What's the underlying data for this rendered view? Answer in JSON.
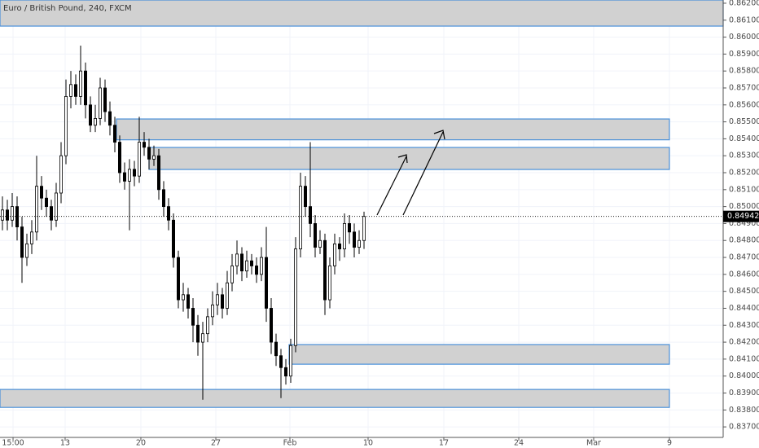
{
  "chart_data": {
    "type": "candlestick",
    "title": "Euro / British Pound, 240, FXCM",
    "x": [
      0,
      1,
      2,
      3,
      4,
      5,
      6,
      7,
      8,
      9,
      10,
      11,
      12,
      13,
      14,
      15,
      16,
      17,
      18,
      19,
      20,
      21,
      22,
      23,
      24,
      25,
      26,
      27,
      28,
      29,
      30,
      31,
      32,
      33,
      34,
      35,
      36,
      37,
      38,
      39,
      40,
      41,
      42,
      43,
      44,
      45,
      46,
      47,
      48,
      49,
      50,
      51,
      52,
      53,
      54,
      55,
      56,
      57,
      58,
      59,
      60,
      61,
      62,
      63,
      64,
      65,
      66,
      67,
      68,
      69,
      70,
      71,
      72,
      73,
      74
    ],
    "open": [
      0.8492,
      0.8498,
      0.8492,
      0.85,
      0.8488,
      0.847,
      0.8478,
      0.8485,
      0.8512,
      0.8505,
      0.85,
      0.8492,
      0.8508,
      0.853,
      0.8565,
      0.8572,
      0.8565,
      0.858,
      0.856,
      0.8548,
      0.8552,
      0.857,
      0.8556,
      0.8548,
      0.8538,
      0.852,
      0.8515,
      0.8522,
      0.8518,
      0.8538,
      0.8535,
      0.8528,
      0.853,
      0.851,
      0.85,
      0.8492,
      0.847,
      0.8445,
      0.8448,
      0.844,
      0.843,
      0.842,
      0.8425,
      0.8435,
      0.8442,
      0.8448,
      0.844,
      0.8455,
      0.8465,
      0.8472,
      0.8462,
      0.8468,
      0.8465,
      0.846,
      0.847,
      0.844,
      0.842,
      0.8412,
      0.8405,
      0.84,
      0.8418,
      0.8475,
      0.8512,
      0.85,
      0.849,
      0.8476,
      0.848,
      0.8445,
      0.8465,
      0.8478,
      0.8475,
      0.849,
      0.8485,
      0.8476,
      0.848
    ],
    "high": [
      0.8506,
      0.8504,
      0.8508,
      0.8506,
      0.8494,
      0.8484,
      0.8492,
      0.853,
      0.8518,
      0.851,
      0.8504,
      0.8514,
      0.8538,
      0.8575,
      0.858,
      0.8578,
      0.8595,
      0.8585,
      0.8565,
      0.856,
      0.8576,
      0.8575,
      0.8562,
      0.8553,
      0.8542,
      0.8526,
      0.8528,
      0.8527,
      0.8553,
      0.8544,
      0.854,
      0.8536,
      0.8534,
      0.8515,
      0.8505,
      0.8496,
      0.8474,
      0.8455,
      0.8452,
      0.8446,
      0.8436,
      0.8432,
      0.844,
      0.845,
      0.8455,
      0.8452,
      0.8462,
      0.8472,
      0.848,
      0.8476,
      0.8474,
      0.8472,
      0.847,
      0.8476,
      0.8488,
      0.8446,
      0.8425,
      0.8416,
      0.841,
      0.8422,
      0.8482,
      0.852,
      0.8518,
      0.8538,
      0.8495,
      0.8486,
      0.8484,
      0.847,
      0.8484,
      0.8482,
      0.8496,
      0.8495,
      0.849,
      0.8486,
      0.8497
    ],
    "low": [
      0.8486,
      0.8486,
      0.8488,
      0.848,
      0.8455,
      0.8465,
      0.8472,
      0.848,
      0.8498,
      0.8494,
      0.8486,
      0.8488,
      0.8502,
      0.8525,
      0.8558,
      0.856,
      0.856,
      0.8552,
      0.8544,
      0.8544,
      0.8548,
      0.855,
      0.8542,
      0.8532,
      0.8514,
      0.851,
      0.8486,
      0.8512,
      0.8514,
      0.853,
      0.8522,
      0.8524,
      0.8504,
      0.8494,
      0.8486,
      0.8464,
      0.844,
      0.8438,
      0.8434,
      0.842,
      0.8412,
      0.8386,
      0.842,
      0.843,
      0.8436,
      0.8434,
      0.8436,
      0.845,
      0.846,
      0.8456,
      0.8458,
      0.846,
      0.8455,
      0.8456,
      0.8432,
      0.8413,
      0.8406,
      0.8387,
      0.8395,
      0.8396,
      0.8414,
      0.847,
      0.8494,
      0.8482,
      0.847,
      0.8472,
      0.8436,
      0.844,
      0.846,
      0.8468,
      0.847,
      0.8478,
      0.847,
      0.8472,
      0.8475
    ],
    "close": [
      0.8498,
      0.8492,
      0.85,
      0.8488,
      0.847,
      0.8478,
      0.8485,
      0.8512,
      0.8505,
      0.85,
      0.8492,
      0.8508,
      0.853,
      0.8565,
      0.8572,
      0.8565,
      0.858,
      0.856,
      0.8548,
      0.8552,
      0.857,
      0.8556,
      0.8548,
      0.8538,
      0.852,
      0.8515,
      0.8522,
      0.8518,
      0.8538,
      0.8535,
      0.8528,
      0.853,
      0.851,
      0.85,
      0.8492,
      0.847,
      0.8445,
      0.8448,
      0.844,
      0.843,
      0.842,
      0.8425,
      0.8435,
      0.8442,
      0.8448,
      0.844,
      0.8455,
      0.8465,
      0.8472,
      0.8462,
      0.8468,
      0.8465,
      0.846,
      0.847,
      0.844,
      0.842,
      0.8412,
      0.8405,
      0.84,
      0.8418,
      0.8475,
      0.8512,
      0.85,
      0.849,
      0.8476,
      0.848,
      0.8445,
      0.8465,
      0.8478,
      0.8475,
      0.849,
      0.8485,
      0.8476,
      0.848,
      0.84942
    ],
    "up_color": "#ffffff",
    "down_color": "#000000",
    "xlim": [
      -0.5,
      147.5
    ],
    "xticks": [
      {
        "value": 2.17,
        "label": "15:00"
      },
      {
        "value": 12.83,
        "label": "13"
      },
      {
        "value": 28.33,
        "label": "20"
      },
      {
        "value": 43.67,
        "label": "27"
      },
      {
        "value": 58.83,
        "label": "Feb"
      },
      {
        "value": 74.83,
        "label": "10"
      },
      {
        "value": 90.33,
        "label": "17"
      },
      {
        "value": 105.67,
        "label": "24"
      },
      {
        "value": 121,
        "label": "Mar"
      },
      {
        "value": 136.5,
        "label": "9"
      }
    ],
    "ylim": [
      0.83638,
      0.86219
    ],
    "yticks": [
      {
        "value": 0.837,
        "label": "0.83700"
      },
      {
        "value": 0.838,
        "label": "0.83800"
      },
      {
        "value": 0.839,
        "label": "0.83900"
      },
      {
        "value": 0.84,
        "label": "0.84000"
      },
      {
        "value": 0.841,
        "label": "0.84100"
      },
      {
        "value": 0.842,
        "label": "0.84200"
      },
      {
        "value": 0.843,
        "label": "0.84300"
      },
      {
        "value": 0.844,
        "label": "0.84400"
      },
      {
        "value": 0.845,
        "label": "0.84500"
      },
      {
        "value": 0.846,
        "label": "0.84600"
      },
      {
        "value": 0.847,
        "label": "0.84700"
      },
      {
        "value": 0.848,
        "label": "0.84800"
      },
      {
        "value": 0.849,
        "label": "0.84900"
      },
      {
        "value": 0.85,
        "label": "0.85000"
      },
      {
        "value": 0.851,
        "label": "0.85100"
      },
      {
        "value": 0.852,
        "label": "0.85200"
      },
      {
        "value": 0.853,
        "label": "0.85300"
      },
      {
        "value": 0.854,
        "label": "0.85400"
      },
      {
        "value": 0.855,
        "label": "0.85500"
      },
      {
        "value": 0.856,
        "label": "0.85600"
      },
      {
        "value": 0.857,
        "label": "0.85700"
      },
      {
        "value": 0.858,
        "label": "0.85800"
      },
      {
        "value": 0.859,
        "label": "0.85900"
      },
      {
        "value": 0.86,
        "label": "0.86000"
      },
      {
        "value": 0.861,
        "label": "0.86100"
      },
      {
        "value": 0.862,
        "label": "0.86200"
      }
    ],
    "grid": true,
    "zones": [
      {
        "x": [
          -0.5,
          147.5
        ],
        "y": [
          0.86219,
          0.86065
        ]
      },
      {
        "x": [
          23.33,
          136.5
        ],
        "y": [
          0.85517,
          0.85394
        ]
      },
      {
        "x": [
          30,
          136.5
        ],
        "y": [
          0.85349,
          0.85219
        ]
      },
      {
        "x": [
          58.67,
          136.5
        ],
        "y": [
          0.84186,
          0.8407
        ]
      },
      {
        "x": [
          -0.5,
          136.5
        ],
        "y": [
          0.83921,
          0.83815
        ]
      }
    ],
    "zone_fill": "#d1d1d1",
    "zone_stroke": "#4a90d9",
    "last_price": {
      "value": 0.84942,
      "label": "0.84942"
    }
  }
}
